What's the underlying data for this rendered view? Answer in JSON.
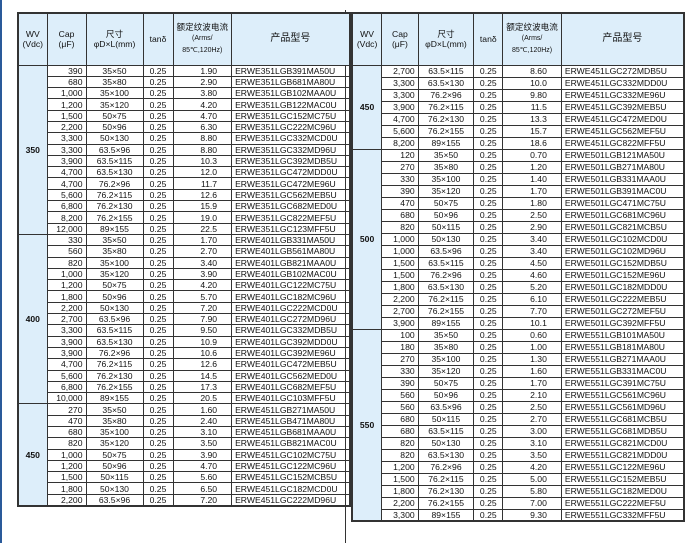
{
  "header": {
    "wv": "WV",
    "wv_unit": "(Vdc)",
    "cap": "Cap",
    "cap_unit": "(μF)",
    "size": "尺寸",
    "size_unit": "φD×L(mm)",
    "tan": "tanδ",
    "ripple": "额定纹波电流",
    "ripple_unit": "(Arms/",
    "ripple_cond": "85℃,120Hz)",
    "part": "产品型号"
  },
  "colors": {
    "header_bg": "#ddeefa",
    "border": "#333333"
  },
  "left": [
    {
      "wv": "350",
      "rows": [
        [
          "390",
          "35×50",
          "0.25",
          "1.90",
          "ERWE351LGB391MA50U"
        ],
        [
          "680",
          "35×80",
          "0.25",
          "2.90",
          "ERWE351LGB681MA80U"
        ],
        [
          "1,000",
          "35×100",
          "0.25",
          "3.80",
          "ERWE351LGB102MAA0U"
        ],
        [
          "1,200",
          "35×120",
          "0.25",
          "4.20",
          "ERWE351LGB122MAC0U"
        ],
        [
          "1,500",
          "50×75",
          "0.25",
          "4.70",
          "ERWE351LGC152MC75U"
        ],
        [
          "2,200",
          "50×96",
          "0.25",
          "6.30",
          "ERWE351LGC222MC96U"
        ],
        [
          "3,300",
          "50×130",
          "0.25",
          "8.80",
          "ERWE351LGC332MCD0U"
        ],
        [
          "3,300",
          "63.5×96",
          "0.25",
          "8.80",
          "ERWE351LGC332MD96U"
        ],
        [
          "3,900",
          "63.5×115",
          "0.25",
          "10.3",
          "ERWE351LGC392MDB5U"
        ],
        [
          "4,700",
          "63.5×130",
          "0.25",
          "12.0",
          "ERWE351LGC472MDD0U"
        ],
        [
          "4,700",
          "76.2×96",
          "0.25",
          "11.7",
          "ERWE351LGC472ME96U"
        ],
        [
          "5,600",
          "76.2×115",
          "0.25",
          "12.6",
          "ERWE351LGC562MEB5U"
        ],
        [
          "6,800",
          "76.2×130",
          "0.25",
          "15.9",
          "ERWE351LGC682MED0U"
        ],
        [
          "8,200",
          "76.2×155",
          "0.25",
          "19.0",
          "ERWE351LGC822MEF5U"
        ],
        [
          "12,000",
          "89×155",
          "0.25",
          "22.5",
          "ERWE351LGC123MFF5U"
        ]
      ]
    },
    {
      "wv": "400",
      "rows": [
        [
          "330",
          "35×50",
          "0.25",
          "1.70",
          "ERWE401LGB331MA50U"
        ],
        [
          "560",
          "35×80",
          "0.25",
          "2.70",
          "ERWE401LGB561MA80U"
        ],
        [
          "820",
          "35×100",
          "0.25",
          "3.40",
          "ERWE401LGB821MAA0U"
        ],
        [
          "1,000",
          "35×120",
          "0.25",
          "3.90",
          "ERWE401LGB102MAC0U"
        ],
        [
          "1,200",
          "50×75",
          "0.25",
          "4.20",
          "ERWE401LGC122MC75U"
        ],
        [
          "1,800",
          "50×96",
          "0.25",
          "5.70",
          "ERWE401LGC182MC96U"
        ],
        [
          "2,200",
          "50×130",
          "0.25",
          "7.20",
          "ERWE401LGC222MCD0U"
        ],
        [
          "2,700",
          "63.5×96",
          "0.25",
          "7.90",
          "ERWE401LGC272MD96U"
        ],
        [
          "3,300",
          "63.5×115",
          "0.25",
          "9.50",
          "ERWE401LGC332MDB5U"
        ],
        [
          "3,900",
          "63.5×130",
          "0.25",
          "10.9",
          "ERWE401LGC392MDD0U"
        ],
        [
          "3,900",
          "76.2×96",
          "0.25",
          "10.6",
          "ERWE401LGC392ME96U"
        ],
        [
          "4,700",
          "76.2×115",
          "0.25",
          "12.6",
          "ERWE401LGC472MEB5U"
        ],
        [
          "5,600",
          "76.2×130",
          "0.25",
          "14.5",
          "ERWE401LGC562MED0U"
        ],
        [
          "6,800",
          "76.2×155",
          "0.25",
          "17.3",
          "ERWE401LGC682MEF5U"
        ],
        [
          "10,000",
          "89×155",
          "0.25",
          "20.5",
          "ERWE401LGC103MFF5U"
        ]
      ]
    },
    {
      "wv": "450",
      "rows": [
        [
          "270",
          "35×50",
          "0.25",
          "1.60",
          "ERWE451LGB271MA50U"
        ],
        [
          "470",
          "35×80",
          "0.25",
          "2.40",
          "ERWE451LGB471MA80U"
        ],
        [
          "680",
          "35×100",
          "0.25",
          "3.10",
          "ERWE451LGB681MAA0U"
        ],
        [
          "820",
          "35×120",
          "0.25",
          "3.50",
          "ERWE451LGB821MAC0U"
        ],
        [
          "1,000",
          "50×75",
          "0.25",
          "3.90",
          "ERWE451LGC102MC75U"
        ],
        [
          "1,200",
          "50×96",
          "0.25",
          "4.70",
          "ERWE451LGC122MC96U"
        ],
        [
          "1,500",
          "50×115",
          "0.25",
          "5.60",
          "ERWE451LGC152MCB5U"
        ],
        [
          "1,800",
          "50×130",
          "0.25",
          "6.50",
          "ERWE451LGC182MCD0U"
        ],
        [
          "2,200",
          "63.5×96",
          "0.25",
          "7.20",
          "ERWE451LGC222MD96U"
        ]
      ]
    }
  ],
  "right": [
    {
      "wv": "450",
      "rows": [
        [
          "2,700",
          "63.5×115",
          "0.25",
          "8.60",
          "ERWE451LGC272MDB5U"
        ],
        [
          "3,300",
          "63.5×130",
          "0.25",
          "10.0",
          "ERWE451LGC332MDD0U"
        ],
        [
          "3,300",
          "76.2×96",
          "0.25",
          "9.80",
          "ERWE451LGC332ME96U"
        ],
        [
          "3,900",
          "76.2×115",
          "0.25",
          "11.5",
          "ERWE451LGC392MEB5U"
        ],
        [
          "4,700",
          "76.2×130",
          "0.25",
          "13.3",
          "ERWE451LGC472MED0U"
        ],
        [
          "5,600",
          "76.2×155",
          "0.25",
          "15.7",
          "ERWE451LGC562MEF5U"
        ],
        [
          "8,200",
          "89×155",
          "0.25",
          "18.6",
          "ERWE451LGC822MFF5U"
        ]
      ]
    },
    {
      "wv": "500",
      "rows": [
        [
          "120",
          "35×50",
          "0.25",
          "0.70",
          "ERWE501LGB121MA50U"
        ],
        [
          "270",
          "35×80",
          "0.25",
          "1.20",
          "ERWE501LGB271MA80U"
        ],
        [
          "330",
          "35×100",
          "0.25",
          "1.40",
          "ERWE501LGB331MAA0U"
        ],
        [
          "390",
          "35×120",
          "0.25",
          "1.70",
          "ERWE501LGB391MAC0U"
        ],
        [
          "470",
          "50×75",
          "0.25",
          "1.80",
          "ERWE501LGC471MC75U"
        ],
        [
          "680",
          "50×96",
          "0.25",
          "2.50",
          "ERWE501LGC681MC96U"
        ],
        [
          "820",
          "50×115",
          "0.25",
          "2.90",
          "ERWE501LGC821MCB5U"
        ],
        [
          "1,000",
          "50×130",
          "0.25",
          "3.40",
          "ERWE501LGC102MCD0U"
        ],
        [
          "1,000",
          "63.5×96",
          "0.25",
          "3.40",
          "ERWE501LGC102MD96U"
        ],
        [
          "1,500",
          "63.5×115",
          "0.25",
          "4.50",
          "ERWE501LGC152MDB5U"
        ],
        [
          "1,500",
          "76.2×96",
          "0.25",
          "4.60",
          "ERWE501LGC152ME96U"
        ],
        [
          "1,800",
          "63.5×130",
          "0.25",
          "5.20",
          "ERWE501LGC182MDD0U"
        ],
        [
          "2,200",
          "76.2×115",
          "0.25",
          "6.10",
          "ERWE501LGC222MEB5U"
        ],
        [
          "2,700",
          "76.2×155",
          "0.25",
          "7.70",
          "ERWE501LGC272MEF5U"
        ],
        [
          "3,900",
          "89×155",
          "0.25",
          "10.1",
          "ERWE501LGC392MFF5U"
        ]
      ]
    },
    {
      "wv": "550",
      "rows": [
        [
          "100",
          "35×50",
          "0.25",
          "0.60",
          "ERWE551LGB101MA50U"
        ],
        [
          "180",
          "35×80",
          "0.25",
          "1.00",
          "ERWE551LGB181MA80U"
        ],
        [
          "270",
          "35×100",
          "0.25",
          "1.30",
          "ERWE551LGB271MAA0U"
        ],
        [
          "330",
          "35×120",
          "0.25",
          "1.60",
          "ERWE551LGB331MAC0U"
        ],
        [
          "390",
          "50×75",
          "0.25",
          "1.70",
          "ERWE551LGC391MC75U"
        ],
        [
          "560",
          "50×96",
          "0.25",
          "2.10",
          "ERWE551LGC561MC96U"
        ],
        [
          "560",
          "63.5×96",
          "0.25",
          "2.50",
          "ERWE551LGC561MD96U"
        ],
        [
          "680",
          "50×115",
          "0.25",
          "2.70",
          "ERWE551LGC681MCB5U"
        ],
        [
          "680",
          "63.5×115",
          "0.25",
          "3.00",
          "ERWE551LGC681MDB5U"
        ],
        [
          "820",
          "50×130",
          "0.25",
          "3.10",
          "ERWE551LGC821MCD0U"
        ],
        [
          "820",
          "63.5×130",
          "0.25",
          "3.50",
          "ERWE551LGC821MDD0U"
        ],
        [
          "1,200",
          "76.2×96",
          "0.25",
          "4.20",
          "ERWE551LGC122ME96U"
        ],
        [
          "1,500",
          "76.2×115",
          "0.25",
          "5.00",
          "ERWE551LGC152MEB5U"
        ],
        [
          "1,800",
          "76.2×130",
          "0.25",
          "5.80",
          "ERWE551LGC182MED0U"
        ],
        [
          "2,200",
          "76.2×155",
          "0.25",
          "7.00",
          "ERWE551LGC222MEF5U"
        ],
        [
          "3,300",
          "89×155",
          "0.25",
          "9.30",
          "ERWE551LGC332MFF5U"
        ]
      ]
    }
  ]
}
